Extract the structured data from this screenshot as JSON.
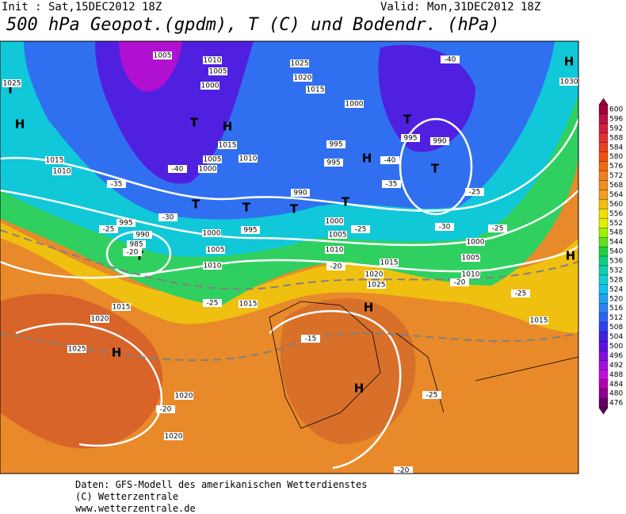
{
  "header": {
    "init": "Init : Sat,15DEC2012 18Z",
    "valid": "Valid: Mon,31DEC2012 18Z",
    "title": "500 hPa Geopot.(gpdm), T (C) und Bodendr. (hPa)"
  },
  "colorbar": {
    "ticks": [
      600,
      596,
      592,
      588,
      584,
      580,
      576,
      572,
      568,
      564,
      560,
      556,
      552,
      548,
      544,
      540,
      536,
      532,
      528,
      524,
      520,
      516,
      512,
      508,
      504,
      500,
      496,
      492,
      488,
      484,
      480,
      476
    ],
    "colors": [
      "#a0003a",
      "#c0104a",
      "#d02040",
      "#e03030",
      "#e84020",
      "#f05010",
      "#f06a10",
      "#f08020",
      "#f09020",
      "#f0a020",
      "#f0c010",
      "#f0e000",
      "#e0f000",
      "#a0f000",
      "#60e020",
      "#20d040",
      "#10d080",
      "#10d0b0",
      "#10d0d0",
      "#10c0f0",
      "#20a0f0",
      "#3080f0",
      "#3060f0",
      "#3040f0",
      "#4020e0",
      "#6010e0",
      "#8010e0",
      "#a010e0",
      "#c010e0",
      "#b000b0",
      "#900090",
      "#600060"
    ]
  },
  "map_labels": [
    "H",
    "H",
    "H",
    "H",
    "H",
    "H",
    "H",
    "H",
    "T",
    "T",
    "T",
    "T",
    "T",
    "T",
    "T",
    "T",
    "T",
    "-40",
    "-35",
    "-30",
    "-25",
    "-20",
    "-25",
    "-40",
    "-40",
    "-35",
    "-25",
    "-30",
    "-25",
    "-25",
    "-20",
    "-20",
    "-25",
    "-15",
    "-20",
    "-25",
    "-20",
    "1005",
    "1010",
    "1005",
    "1000",
    "1025",
    "1020",
    "1015",
    "1000",
    "995",
    "990",
    "1015",
    "1005",
    "1010",
    "1000",
    "995",
    "995",
    "990",
    "1015",
    "1010",
    "995",
    "990",
    "985",
    "1000",
    "995",
    "1005",
    "1010",
    "1000",
    "1005",
    "1010",
    "1000",
    "1005",
    "1010",
    "1015",
    "1020",
    "1025",
    "1015",
    "1020",
    "1015",
    "1015",
    "1025",
    "1020",
    "1020",
    "1025",
    "1030"
  ],
  "footer": [
    "Daten: GFS-Modell des amerikanischen Wetterdienstes",
    "(C) Wetterzentrale",
    "www.wetterzentrale.de"
  ]
}
